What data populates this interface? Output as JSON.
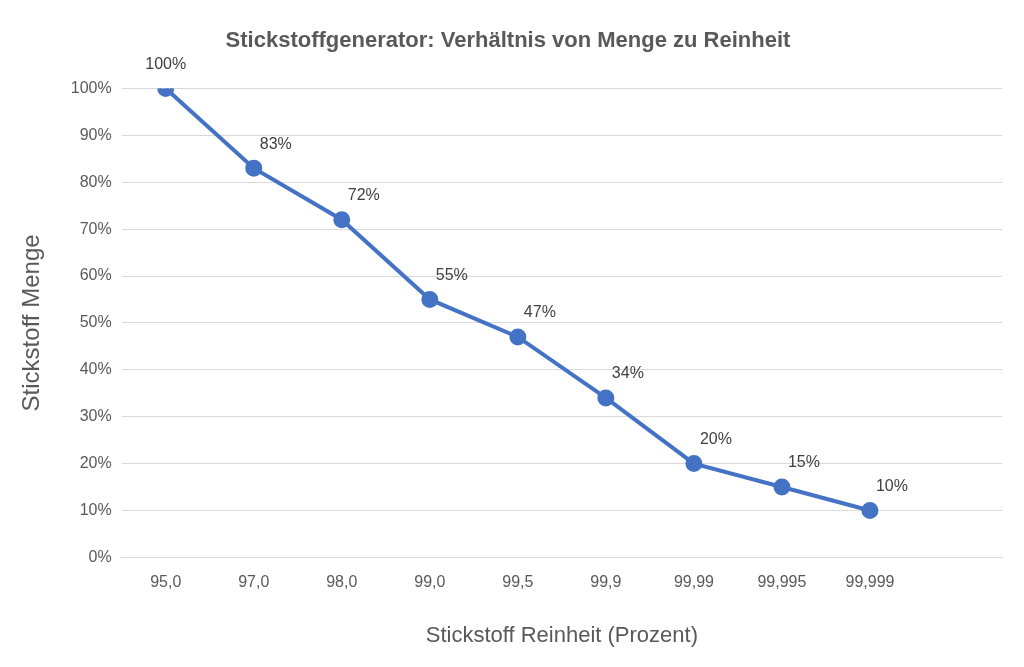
{
  "chart_data": {
    "type": "line",
    "title": "Stickstoffgenerator: Verhältnis von Menge zu Reinheit",
    "x_label": "Stickstoff Reinheit (Prozent)",
    "y_label": "Stickstoff Menge",
    "categories": [
      "95,0",
      "97,0",
      "98,0",
      "99,0",
      "99,5",
      "99,9",
      "99,99",
      "99,995",
      "99,999",
      null
    ],
    "values": [
      100,
      83,
      72,
      55,
      47,
      34,
      20,
      15,
      10,
      null
    ],
    "value_labels": [
      "100%",
      "83%",
      "72%",
      "55%",
      "47%",
      "34%",
      "20%",
      "15%",
      "10%",
      null
    ],
    "color": "#4472c4",
    "marker": "circle",
    "ylim": [
      0,
      100
    ],
    "yticks": [
      {
        "value": 0,
        "label": "0%"
      },
      {
        "value": 10,
        "label": "10%"
      },
      {
        "value": 20,
        "label": "20%"
      },
      {
        "value": 30,
        "label": "30%"
      },
      {
        "value": 40,
        "label": "40%"
      },
      {
        "value": 50,
        "label": "50%"
      },
      {
        "value": 60,
        "label": "60%"
      },
      {
        "value": 70,
        "label": "70%"
      },
      {
        "value": 80,
        "label": "80%"
      },
      {
        "value": 90,
        "label": "90%"
      },
      {
        "value": 100,
        "label": "100%"
      }
    ],
    "grid": true,
    "data_labels": true
  }
}
